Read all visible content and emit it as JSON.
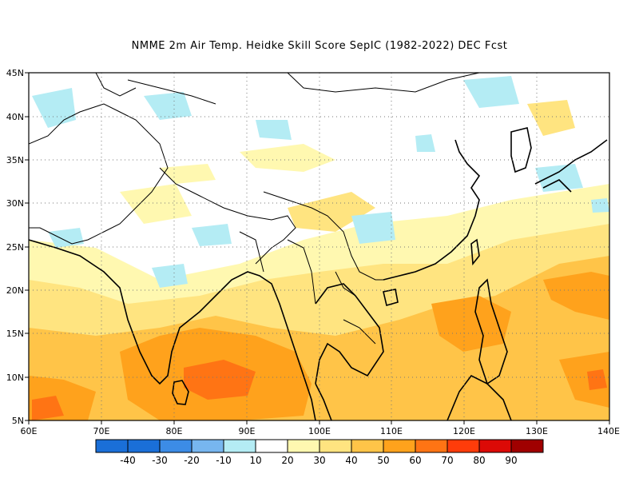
{
  "title": "NMME  2m Air Temp. Heidke Skill Score SepIC (1982-2022) DEC Fcst",
  "map": {
    "lon_range": [
      60,
      140
    ],
    "lat_range": [
      5,
      45
    ],
    "lon_ticks": [
      "60E",
      "70E",
      "80E",
      "90E",
      "100E",
      "110E",
      "120E",
      "130E",
      "140E"
    ],
    "lat_ticks": [
      "5N",
      "10N",
      "15N",
      "20N",
      "25N",
      "30N",
      "35N",
      "40N",
      "45N"
    ],
    "grid": "dotted"
  },
  "colorbar": {
    "colors": [
      "#1a6fd8",
      "#3c8ce6",
      "#77b6ef",
      "#b4ecf4",
      "#ffffff",
      "#fff8b0",
      "#ffe480",
      "#ffc448",
      "#ffa21c",
      "#ff7414",
      "#ff3c0a",
      "#dc0a06",
      "#a00000"
    ],
    "labels": [
      "-40",
      "-30",
      "-20",
      "-10",
      "10",
      "20",
      "30",
      "40",
      "50",
      "60",
      "70",
      "80",
      "90"
    ]
  }
}
